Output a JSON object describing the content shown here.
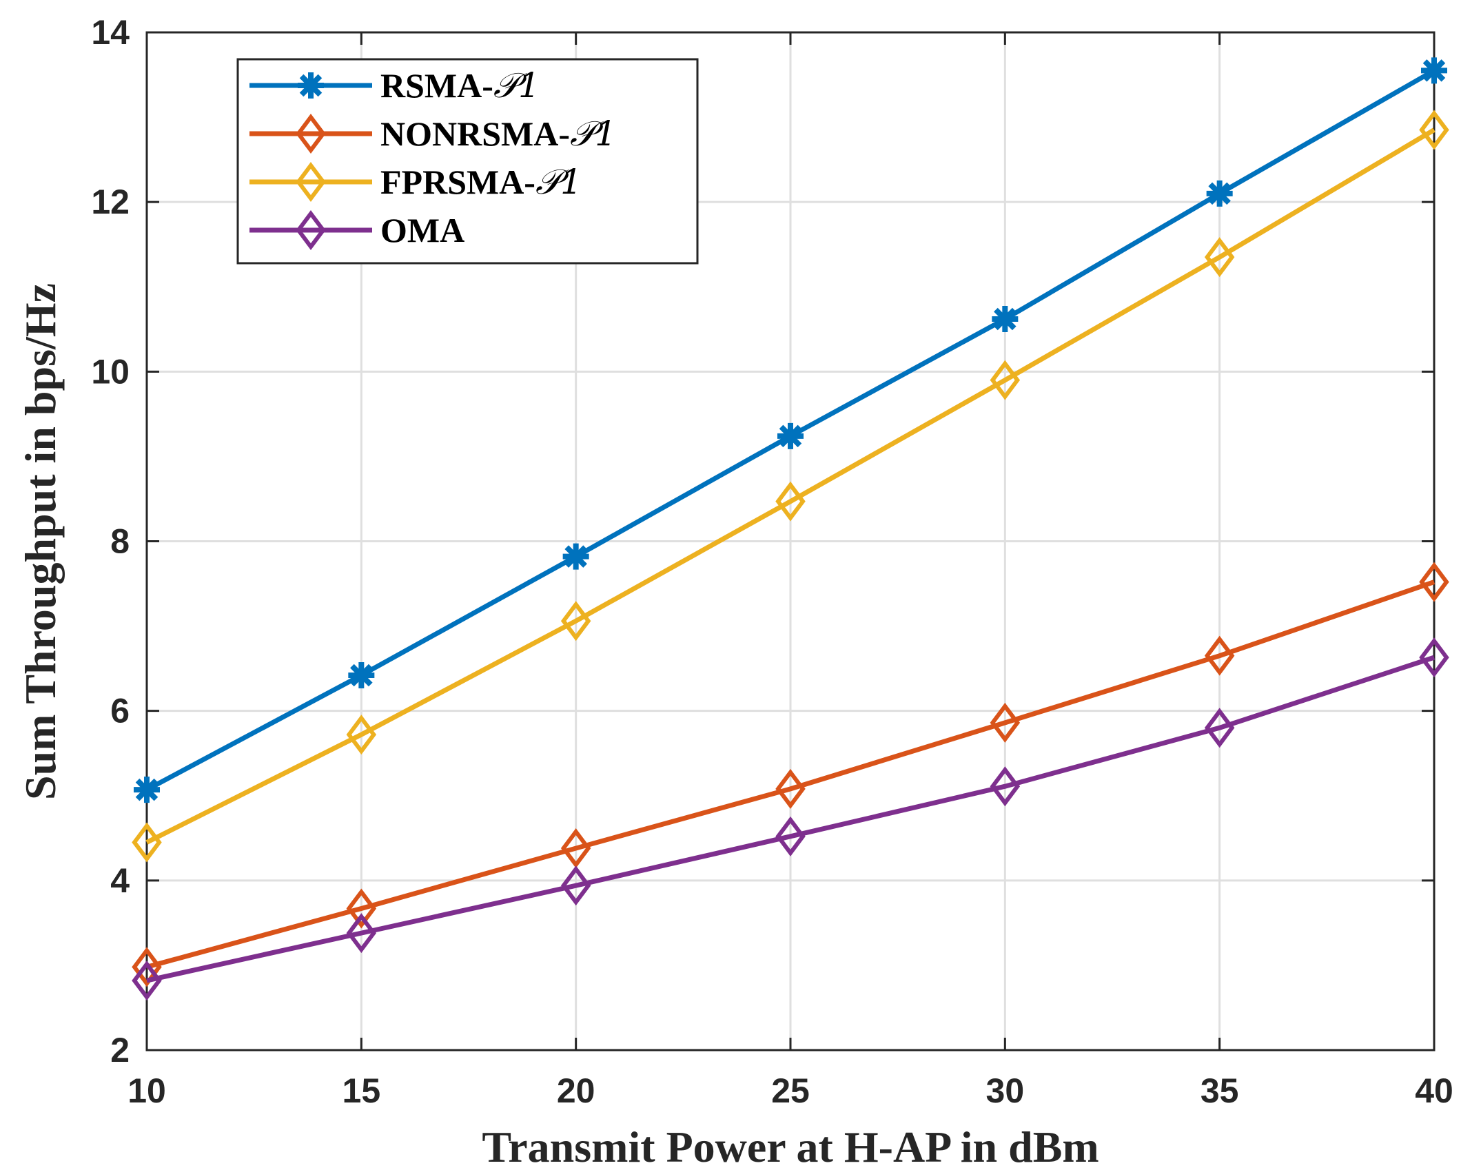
{
  "chart_data": {
    "type": "line",
    "title": "",
    "xlabel": "Transmit Power at H-AP in dBm",
    "ylabel": "Sum Throughput in bps/Hz",
    "x": [
      10,
      15,
      20,
      25,
      30,
      35,
      40
    ],
    "xlim": [
      10,
      40
    ],
    "ylim": [
      2,
      14
    ],
    "xticks": [
      "10",
      "15",
      "20",
      "25",
      "30",
      "35",
      "40"
    ],
    "yticks": [
      "2",
      "4",
      "6",
      "8",
      "10",
      "12",
      "14"
    ],
    "grid": true,
    "legend_position": "top-left",
    "series": [
      {
        "name": "RSMA-",
        "math": "𝒫1",
        "color": "#0072BD",
        "marker": "asterisk",
        "values": [
          5.07,
          6.42,
          7.82,
          9.24,
          10.62,
          12.1,
          13.55
        ]
      },
      {
        "name": "NONRSMA-",
        "math": "𝒫1",
        "color": "#D95319",
        "marker": "diamond",
        "values": [
          2.98,
          3.67,
          4.38,
          5.08,
          5.86,
          6.65,
          7.52
        ]
      },
      {
        "name": "FPRSMA-",
        "math": "𝒫1",
        "color": "#EDB120",
        "marker": "diamond",
        "values": [
          4.45,
          5.72,
          7.06,
          8.47,
          9.9,
          11.35,
          12.85
        ]
      },
      {
        "name": "OMA",
        "math": "",
        "color": "#7E2F8E",
        "marker": "diamond",
        "values": [
          2.82,
          3.38,
          3.94,
          4.52,
          5.11,
          5.8,
          6.63
        ]
      }
    ]
  }
}
